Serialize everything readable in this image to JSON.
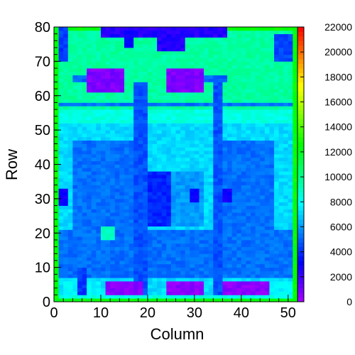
{
  "chart_data": {
    "type": "heatmap",
    "title": "",
    "xlabel": "Column",
    "ylabel": "Row",
    "xlim": [
      0,
      52
    ],
    "ylim": [
      0,
      80
    ],
    "zlim": [
      0,
      22000
    ],
    "x_ticks": [
      0,
      10,
      20,
      30,
      40,
      50
    ],
    "y_ticks": [
      0,
      10,
      20,
      30,
      40,
      50,
      60,
      70,
      80
    ],
    "z_ticks": [
      0,
      2000,
      4000,
      6000,
      8000,
      10000,
      12000,
      14000,
      16000,
      18000,
      20000,
      22000
    ],
    "colormap": "rainbow (violet → blue → cyan → green → yellow → orange → red)",
    "grid": false,
    "legend": "color bar on right",
    "background_value": 8400,
    "regions": [
      {
        "cols": [
          0,
          1
        ],
        "rows": [
          0,
          80
        ],
        "value": 12500
      },
      {
        "cols": [
          51,
          52
        ],
        "rows": [
          0,
          80
        ],
        "value": 12500
      },
      {
        "cols": [
          1,
          51
        ],
        "rows": [
          0,
          1
        ],
        "value": 12500
      },
      {
        "cols": [
          1,
          51
        ],
        "rows": [
          79,
          80
        ],
        "value": 12500
      },
      {
        "cols": [
          1,
          51
        ],
        "rows": [
          56,
          79
        ],
        "value": 9600
      },
      {
        "cols": [
          1,
          51
        ],
        "rows": [
          2,
          52
        ],
        "value": 7200
      },
      {
        "cols": [
          1,
          51
        ],
        "rows": [
          7,
          21
        ],
        "value": 5200
      },
      {
        "cols": [
          4,
          17
        ],
        "rows": [
          20,
          47
        ],
        "value": 5200
      },
      {
        "cols": [
          35,
          47
        ],
        "rows": [
          20,
          47
        ],
        "value": 5200
      },
      {
        "cols": [
          18,
          25
        ],
        "rows": [
          22,
          38
        ],
        "value": 3800
      },
      {
        "cols": [
          25,
          32
        ],
        "rows": [
          22,
          38
        ],
        "value": 6000
      },
      {
        "cols": [
          1,
          3
        ],
        "rows": [
          28,
          33
        ],
        "value": 3000
      },
      {
        "cols": [
          29,
          31
        ],
        "rows": [
          29,
          33
        ],
        "value": 3000
      },
      {
        "cols": [
          36,
          38
        ],
        "rows": [
          29,
          33
        ],
        "value": 3000
      },
      {
        "cols": [
          10,
          13
        ],
        "rows": [
          18,
          22
        ],
        "value": 9000
      },
      {
        "cols": [
          1,
          51
        ],
        "rows": [
          57,
          58
        ],
        "value": 5200
      },
      {
        "cols": [
          17,
          20
        ],
        "rows": [
          2,
          64
        ],
        "value": 4600
      },
      {
        "cols": [
          34,
          36
        ],
        "rows": [
          2,
          64
        ],
        "value": 4600
      },
      {
        "cols": [
          4,
          15
        ],
        "rows": [
          64,
          66
        ],
        "value": 5000
      },
      {
        "cols": [
          30,
          37
        ],
        "rows": [
          64,
          66
        ],
        "value": 5000
      },
      {
        "cols": [
          7,
          15
        ],
        "rows": [
          61,
          68
        ],
        "value": 800
      },
      {
        "cols": [
          24,
          32
        ],
        "rows": [
          61,
          68
        ],
        "value": 800
      },
      {
        "cols": [
          10,
          37
        ],
        "rows": [
          77,
          80
        ],
        "value": 2500
      },
      {
        "cols": [
          22,
          28
        ],
        "rows": [
          73,
          80
        ],
        "value": 2500
      },
      {
        "cols": [
          15,
          17
        ],
        "rows": [
          74,
          79
        ],
        "value": 3000
      },
      {
        "cols": [
          1,
          3
        ],
        "rows": [
          70,
          80
        ],
        "value": 4200
      },
      {
        "cols": [
          47,
          51
        ],
        "rows": [
          70,
          78
        ],
        "value": 4500
      },
      {
        "cols": [
          11,
          19
        ],
        "rows": [
          2,
          6
        ],
        "value": 500
      },
      {
        "cols": [
          24,
          32
        ],
        "rows": [
          2,
          6
        ],
        "value": 500
      },
      {
        "cols": [
          36,
          46
        ],
        "rows": [
          2,
          6
        ],
        "value": 500
      },
      {
        "cols": [
          2,
          10
        ],
        "rows": [
          2,
          6
        ],
        "value": 7800
      },
      {
        "cols": [
          46,
          51
        ],
        "rows": [
          2,
          6
        ],
        "value": 7800
      },
      {
        "cols": [
          5,
          7
        ],
        "rows": [
          2,
          10
        ],
        "value": 4200
      }
    ]
  }
}
